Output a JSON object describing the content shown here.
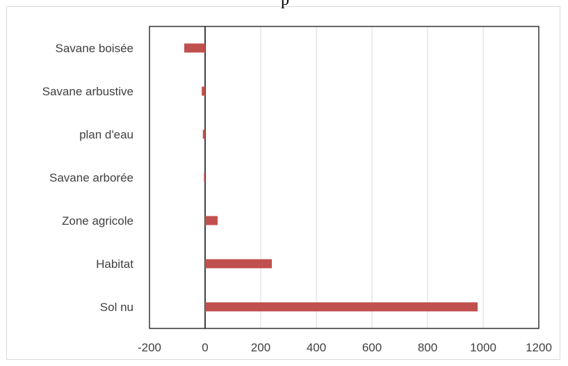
{
  "chart_data": {
    "type": "bar",
    "orientation": "horizontal",
    "title": "",
    "title_fragment": "p",
    "categories": [
      "Sol nu",
      "Habitat",
      "Zone agricole",
      "Savane arborée",
      "plan d'eau",
      "Savane arbustive",
      "Savane boisée"
    ],
    "values": [
      980,
      240,
      45,
      -4,
      -8,
      -12,
      -75
    ],
    "xlabel": "",
    "ylabel": "",
    "xlim": [
      -200,
      1200
    ],
    "xticks": [
      "-200",
      "0",
      "200",
      "400",
      "600",
      "800",
      "1000",
      "1200"
    ],
    "grid": true,
    "legend": "none",
    "colors": {
      "bar": "#c0504d",
      "grid": "#d9d9d9",
      "axis": "#000000",
      "text": "#404040"
    }
  }
}
